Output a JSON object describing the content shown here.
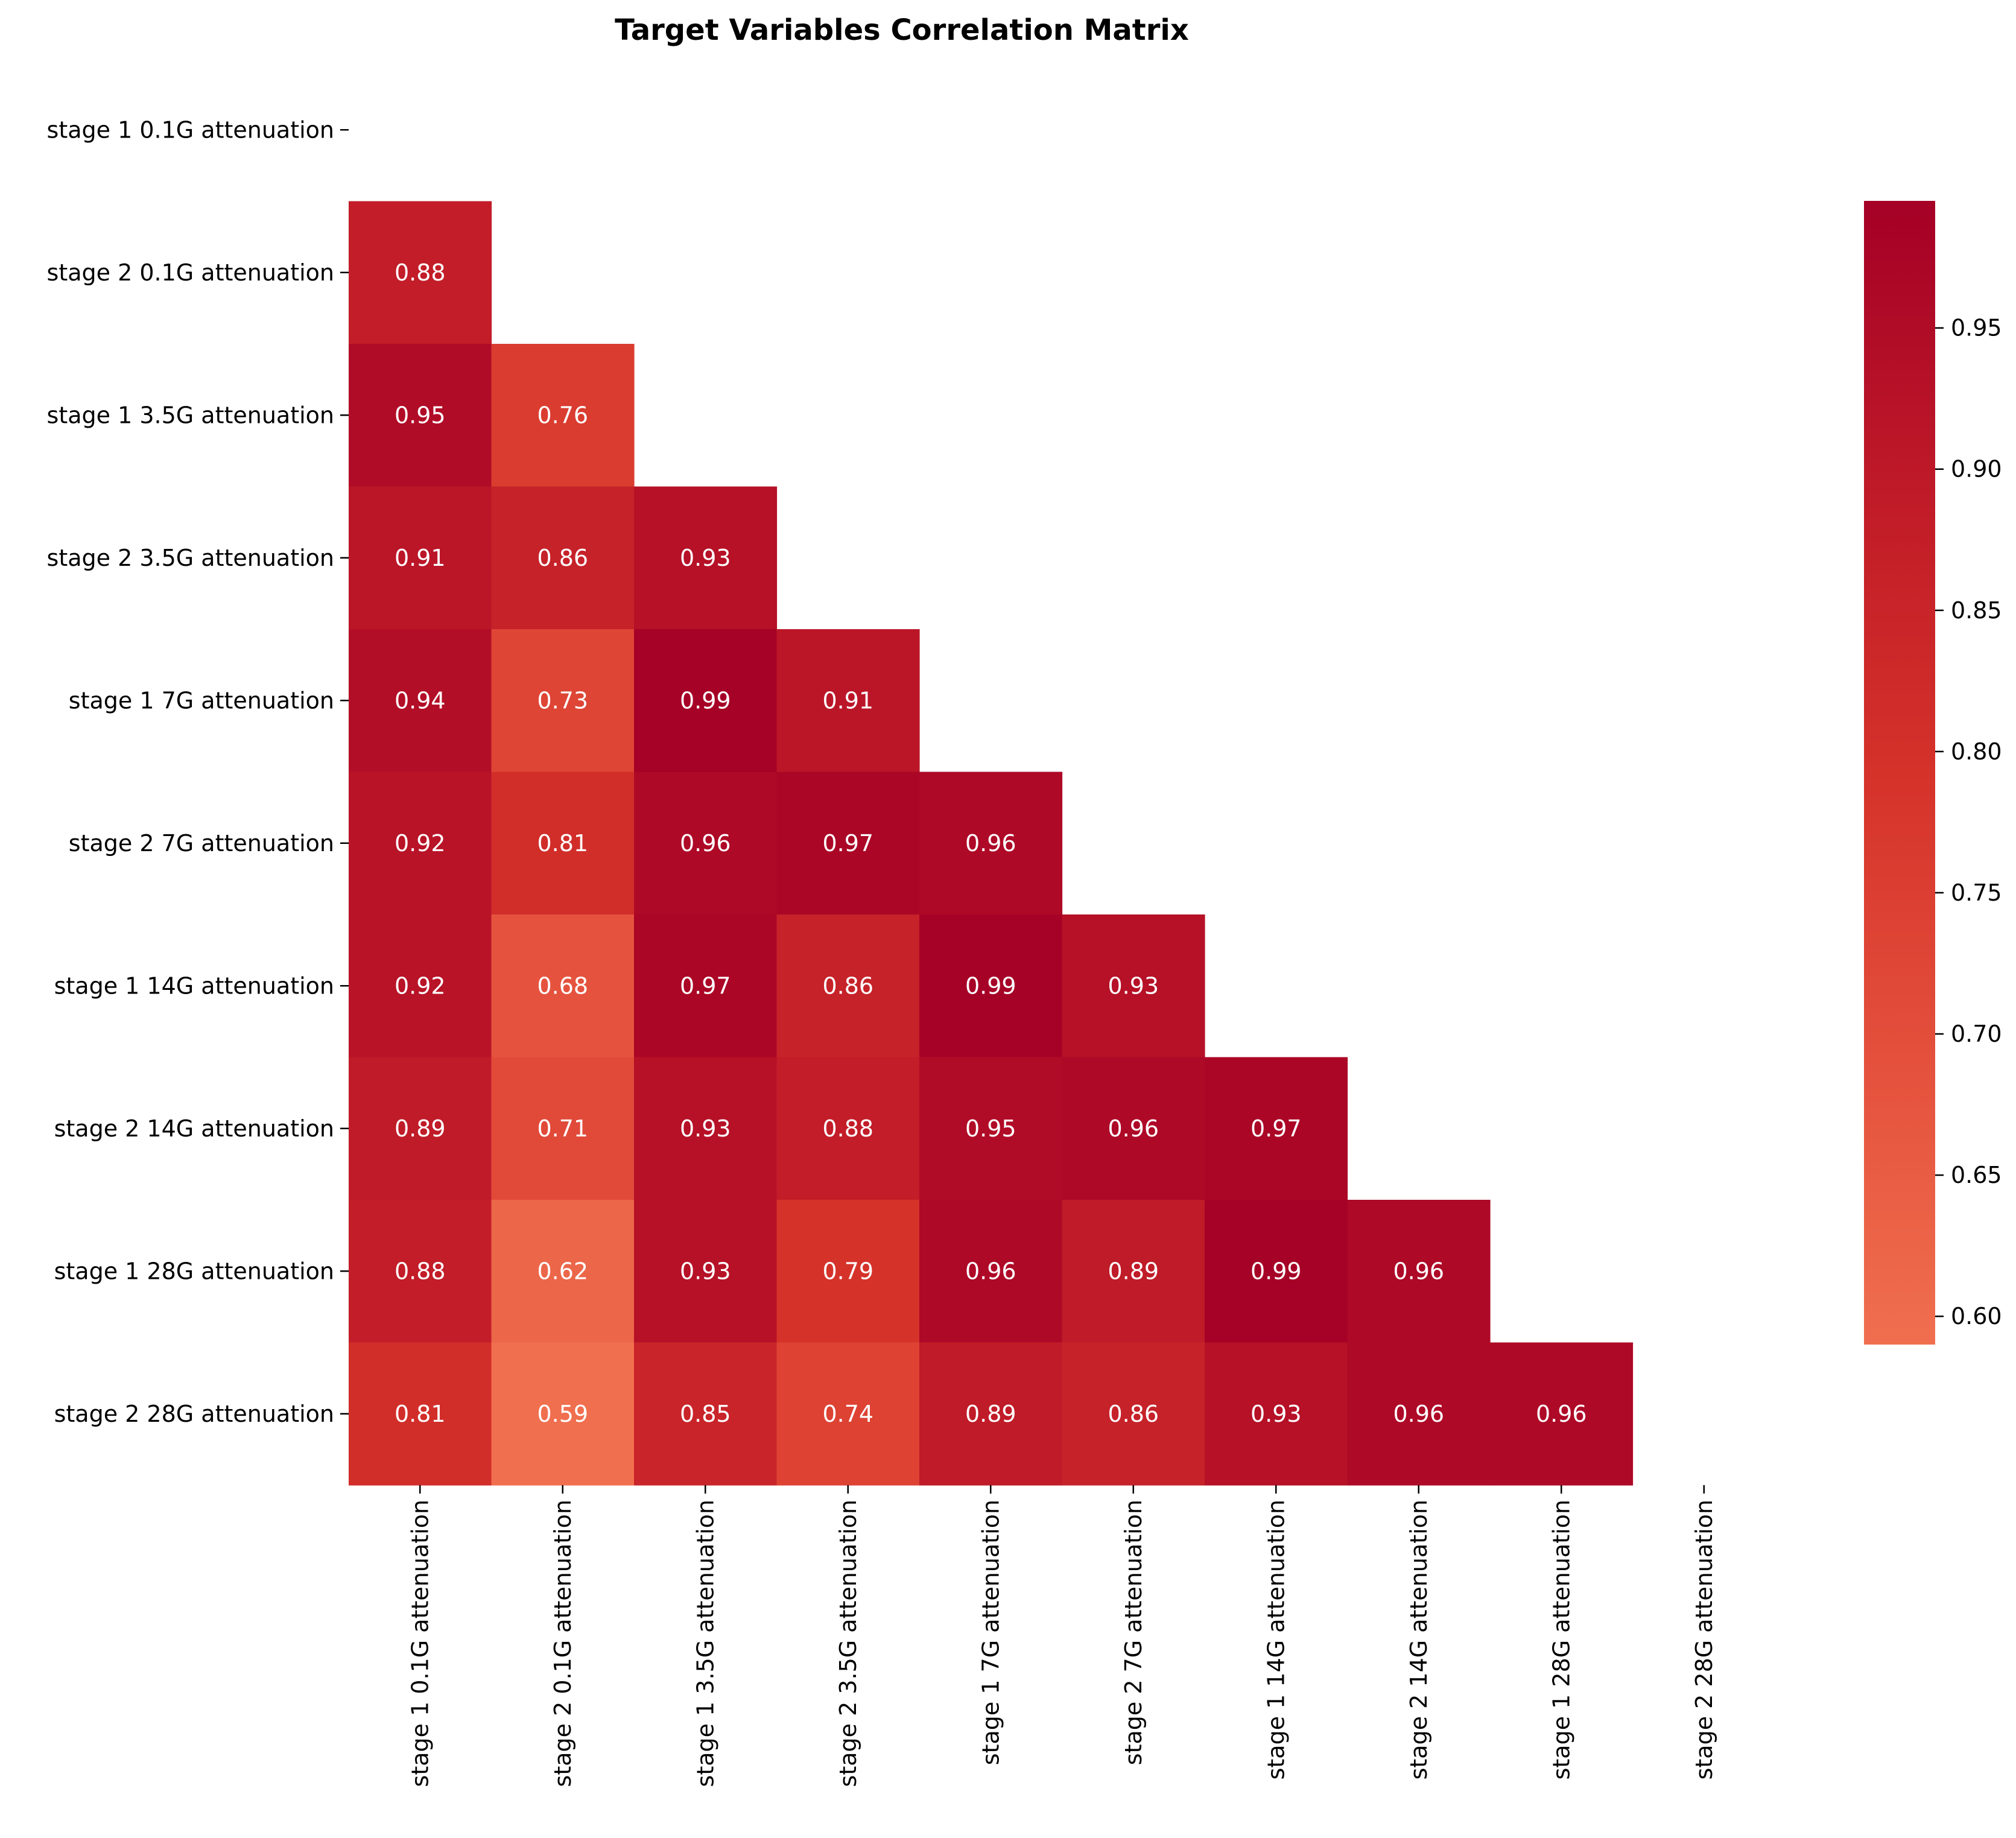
{
  "chart_data": {
    "type": "heatmap",
    "title": "Target Variables Correlation Matrix",
    "mask": "upper-triangle-including-diagonal",
    "labels": [
      "stage 1 0.1G attenuation",
      "stage 2 0.1G attenuation",
      "stage 1 3.5G attenuation",
      "stage 2 3.5G attenuation",
      "stage 1 7G attenuation",
      "stage 2 7G attenuation",
      "stage 1 14G attenuation",
      "stage 2 14G attenuation",
      "stage 1 28G attenuation",
      "stage 2 28G attenuation"
    ],
    "lower_triangle": [
      [],
      [
        0.88
      ],
      [
        0.95,
        0.76
      ],
      [
        0.91,
        0.86,
        0.93
      ],
      [
        0.94,
        0.73,
        0.99,
        0.91
      ],
      [
        0.92,
        0.81,
        0.96,
        0.97,
        0.96
      ],
      [
        0.92,
        0.68,
        0.97,
        0.86,
        0.99,
        0.93
      ],
      [
        0.89,
        0.71,
        0.93,
        0.88,
        0.95,
        0.96,
        0.97
      ],
      [
        0.88,
        0.62,
        0.93,
        0.79,
        0.96,
        0.89,
        0.99,
        0.96
      ],
      [
        0.81,
        0.59,
        0.85,
        0.74,
        0.89,
        0.86,
        0.93,
        0.96,
        0.96
      ]
    ],
    "colorbar": {
      "colormap": "Reds (upper range)",
      "min": 0.59,
      "max": 0.995,
      "ticks": [
        "0.60",
        "0.65",
        "0.70",
        "0.75",
        "0.80",
        "0.85",
        "0.90",
        "0.95"
      ]
    },
    "colors": {
      "low": "#f06f4f",
      "high": "#a50026"
    }
  }
}
